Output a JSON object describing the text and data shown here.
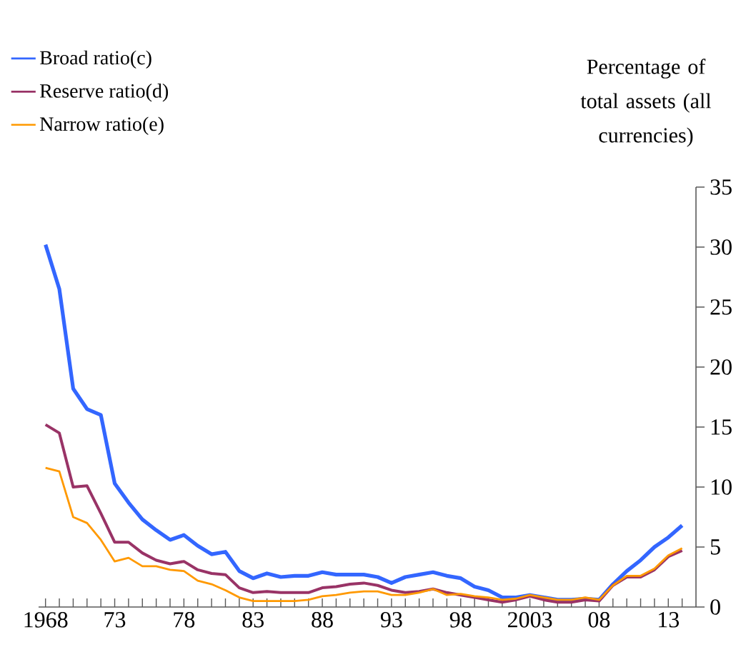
{
  "chart_data": {
    "type": "line",
    "ylabel": "Percentage of total assets (all currencies)",
    "x": [
      1968,
      1969,
      1970,
      1971,
      1972,
      1973,
      1974,
      1975,
      1976,
      1977,
      1978,
      1979,
      1980,
      1981,
      1982,
      1983,
      1984,
      1985,
      1986,
      1987,
      1988,
      1989,
      1990,
      1991,
      1992,
      1993,
      1994,
      1995,
      1996,
      1997,
      1998,
      1999,
      2000,
      2001,
      2002,
      2003,
      2004,
      2005,
      2006,
      2007,
      2008,
      2009,
      2010,
      2011,
      2012,
      2013,
      2014
    ],
    "series": [
      {
        "name": "Broad ratio(c)",
        "color": "#3366ff",
        "values": [
          30.2,
          26.5,
          18.2,
          16.5,
          16.0,
          10.3,
          8.7,
          7.3,
          6.4,
          5.6,
          6.0,
          5.1,
          4.4,
          4.6,
          3.0,
          2.4,
          2.8,
          2.5,
          2.6,
          2.6,
          2.9,
          2.7,
          2.7,
          2.7,
          2.5,
          2.0,
          2.5,
          2.7,
          2.9,
          2.6,
          2.4,
          1.7,
          1.4,
          0.8,
          0.8,
          1.0,
          0.8,
          0.6,
          0.6,
          0.7,
          0.6,
          1.9,
          3.0,
          3.9,
          5.0,
          5.8,
          6.8
        ]
      },
      {
        "name": "Reserve ratio(d)",
        "color": "#993366",
        "values": [
          15.2,
          14.5,
          10.0,
          10.1,
          7.8,
          5.4,
          5.4,
          4.5,
          3.9,
          3.6,
          3.8,
          3.1,
          2.8,
          2.7,
          1.6,
          1.2,
          1.3,
          1.2,
          1.2,
          1.2,
          1.6,
          1.7,
          1.9,
          2.0,
          1.8,
          1.4,
          1.2,
          1.3,
          1.5,
          1.2,
          1.0,
          0.8,
          0.6,
          0.4,
          0.6,
          0.9,
          0.6,
          0.4,
          0.4,
          0.6,
          0.5,
          1.8,
          2.5,
          2.5,
          3.1,
          4.2,
          4.7
        ]
      },
      {
        "name": "Narrow ratio(e)",
        "color": "#ff9900",
        "values": [
          11.6,
          11.3,
          7.5,
          7.0,
          5.6,
          3.8,
          4.1,
          3.4,
          3.4,
          3.1,
          3.0,
          2.2,
          1.9,
          1.4,
          0.8,
          0.5,
          0.5,
          0.5,
          0.5,
          0.6,
          0.9,
          1.0,
          1.2,
          1.3,
          1.3,
          1.0,
          1.0,
          1.2,
          1.5,
          1.0,
          1.1,
          0.9,
          0.8,
          0.6,
          0.7,
          1.0,
          0.8,
          0.6,
          0.6,
          0.8,
          0.6,
          1.8,
          2.6,
          2.6,
          3.2,
          4.3,
          4.9
        ]
      }
    ],
    "xlim": [
      1967.5,
      2015
    ],
    "xticks": [
      {
        "value": 1968,
        "label": "1968"
      },
      {
        "value": 1969,
        "label": null
      },
      {
        "value": 1970,
        "label": null
      },
      {
        "value": 1971,
        "label": null
      },
      {
        "value": 1972,
        "label": null
      },
      {
        "value": 1973,
        "label": "73"
      },
      {
        "value": 1974,
        "label": null
      },
      {
        "value": 1975,
        "label": null
      },
      {
        "value": 1976,
        "label": null
      },
      {
        "value": 1977,
        "label": null
      },
      {
        "value": 1978,
        "label": "78"
      },
      {
        "value": 1979,
        "label": null
      },
      {
        "value": 1980,
        "label": null
      },
      {
        "value": 1981,
        "label": null
      },
      {
        "value": 1982,
        "label": null
      },
      {
        "value": 1983,
        "label": "83"
      },
      {
        "value": 1984,
        "label": null
      },
      {
        "value": 1985,
        "label": null
      },
      {
        "value": 1986,
        "label": null
      },
      {
        "value": 1987,
        "label": null
      },
      {
        "value": 1988,
        "label": "88"
      },
      {
        "value": 1989,
        "label": null
      },
      {
        "value": 1990,
        "label": null
      },
      {
        "value": 1991,
        "label": null
      },
      {
        "value": 1992,
        "label": null
      },
      {
        "value": 1993,
        "label": "93"
      },
      {
        "value": 1994,
        "label": null
      },
      {
        "value": 1995,
        "label": null
      },
      {
        "value": 1996,
        "label": null
      },
      {
        "value": 1997,
        "label": null
      },
      {
        "value": 1998,
        "label": "98"
      },
      {
        "value": 1999,
        "label": null
      },
      {
        "value": 2000,
        "label": null
      },
      {
        "value": 2001,
        "label": null
      },
      {
        "value": 2002,
        "label": null
      },
      {
        "value": 2003,
        "label": "2003"
      },
      {
        "value": 2004,
        "label": null
      },
      {
        "value": 2005,
        "label": null
      },
      {
        "value": 2006,
        "label": null
      },
      {
        "value": 2007,
        "label": null
      },
      {
        "value": 2008,
        "label": "08"
      },
      {
        "value": 2009,
        "label": null
      },
      {
        "value": 2010,
        "label": null
      },
      {
        "value": 2011,
        "label": null
      },
      {
        "value": 2012,
        "label": null
      },
      {
        "value": 2013,
        "label": "13"
      },
      {
        "value": 2014,
        "label": null
      }
    ],
    "ylim": [
      0,
      35
    ],
    "yticks": [
      0,
      5,
      10,
      15,
      20,
      25,
      30,
      35
    ],
    "legend": "top left"
  }
}
